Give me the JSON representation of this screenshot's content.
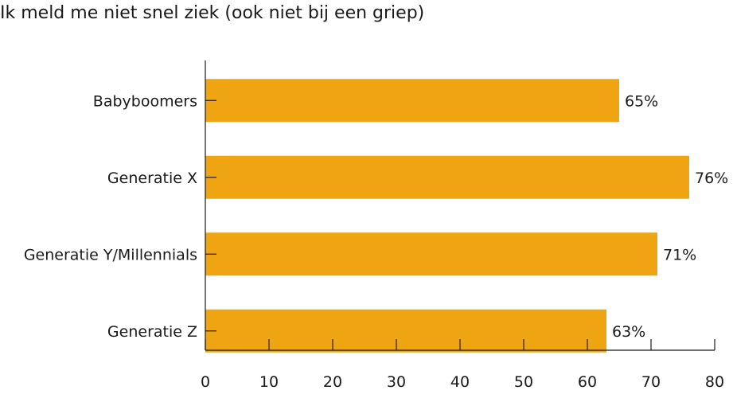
{
  "chart_data": {
    "type": "bar",
    "orientation": "horizontal",
    "title": "Ik meld me niet snel ziek (ook niet bij een griep)",
    "categories": [
      "Babyboomers",
      "Generatie X",
      "Generatie Y/Millennials",
      "Generatie Z"
    ],
    "values": [
      65,
      76,
      71,
      63
    ],
    "value_labels": [
      "65%",
      "76%",
      "71%",
      "63%"
    ],
    "xlim": [
      0,
      80
    ],
    "xticks": [
      0,
      10,
      20,
      30,
      40,
      50,
      60,
      70,
      80
    ],
    "xtick_labels": [
      "0",
      "10",
      "20",
      "30",
      "40",
      "50",
      "60",
      "70",
      "80"
    ],
    "grid": false,
    "legend": "none",
    "colors": {
      "bar": "#eea511",
      "axis": "#1a1a1a"
    }
  }
}
